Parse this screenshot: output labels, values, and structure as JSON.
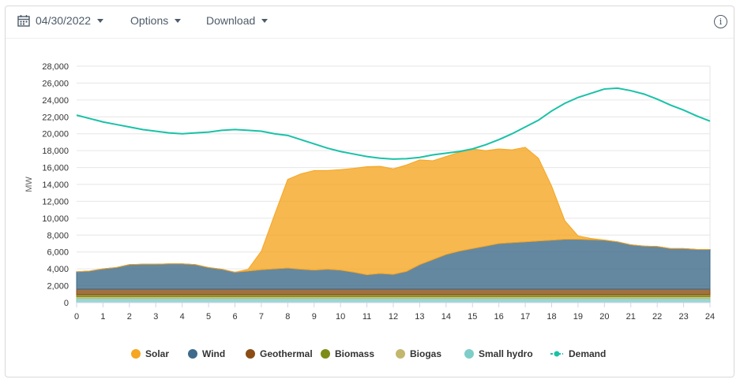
{
  "toolbar": {
    "date_value": "04/30/2022",
    "options_label": "Options",
    "download_label": "Download",
    "info_label": "i"
  },
  "chart_data": {
    "type": "area",
    "xlabel": "",
    "ylabel": "MW",
    "xlim": [
      0,
      24
    ],
    "ylim": [
      0,
      28000
    ],
    "x_ticks": [
      "0",
      "1",
      "2",
      "3",
      "4",
      "5",
      "6",
      "7",
      "8",
      "9",
      "10",
      "11",
      "12",
      "13",
      "14",
      "15",
      "16",
      "17",
      "18",
      "19",
      "20",
      "21",
      "22",
      "23",
      "24"
    ],
    "y_ticks": [
      "0",
      "2,000",
      "4,000",
      "6,000",
      "8,000",
      "10,000",
      "12,000",
      "14,000",
      "16,000",
      "18,000",
      "20,000",
      "22,000",
      "24,000",
      "26,000",
      "28,000"
    ],
    "grid": true,
    "legend_position": "bottom",
    "x": [
      0,
      0.5,
      1,
      1.5,
      2,
      2.5,
      3,
      3.5,
      4,
      4.5,
      5,
      5.5,
      6,
      6.5,
      7,
      7.5,
      8,
      8.5,
      9,
      9.5,
      10,
      10.5,
      11,
      11.5,
      12,
      12.5,
      13,
      13.5,
      14,
      14.5,
      15,
      15.5,
      16,
      16.5,
      17,
      17.5,
      18,
      18.5,
      19,
      19.5,
      20,
      20.5,
      21,
      21.5,
      22,
      22.5,
      23,
      23.5,
      24
    ],
    "series": [
      {
        "name": "Small hydro",
        "color": "#7fcdc8",
        "kind": "area",
        "values": [
          500,
          500,
          500,
          500,
          500,
          500,
          500,
          500,
          500,
          500,
          500,
          500,
          500,
          500,
          500,
          500,
          500,
          500,
          500,
          500,
          500,
          500,
          500,
          500,
          500,
          500,
          500,
          500,
          500,
          500,
          500,
          500,
          500,
          500,
          500,
          500,
          500,
          500,
          500,
          500,
          500,
          500,
          500,
          500,
          500,
          500,
          500,
          500,
          500
        ]
      },
      {
        "name": "Biogas",
        "color": "#c2b76e",
        "kind": "area",
        "values": [
          200,
          200,
          200,
          200,
          200,
          200,
          200,
          200,
          200,
          200,
          200,
          200,
          200,
          200,
          200,
          200,
          200,
          200,
          200,
          200,
          200,
          200,
          200,
          200,
          200,
          200,
          200,
          200,
          200,
          200,
          200,
          200,
          200,
          200,
          200,
          200,
          200,
          200,
          200,
          200,
          200,
          200,
          200,
          200,
          200,
          200,
          200,
          200,
          200
        ]
      },
      {
        "name": "Biomass",
        "color": "#7d8c16",
        "kind": "area",
        "values": [
          250,
          250,
          250,
          250,
          250,
          250,
          250,
          250,
          250,
          250,
          250,
          250,
          250,
          250,
          250,
          250,
          250,
          250,
          250,
          250,
          250,
          250,
          250,
          250,
          250,
          250,
          250,
          250,
          250,
          250,
          250,
          250,
          250,
          250,
          250,
          250,
          250,
          250,
          250,
          250,
          250,
          250,
          250,
          250,
          250,
          250,
          250,
          250,
          250
        ]
      },
      {
        "name": "Geothermal",
        "color": "#8b4d14",
        "kind": "area",
        "values": [
          650,
          650,
          650,
          650,
          650,
          650,
          650,
          650,
          650,
          650,
          650,
          650,
          650,
          650,
          650,
          650,
          650,
          650,
          650,
          650,
          650,
          650,
          650,
          650,
          650,
          650,
          650,
          650,
          650,
          650,
          650,
          650,
          650,
          650,
          650,
          650,
          650,
          650,
          650,
          650,
          650,
          650,
          650,
          650,
          650,
          650,
          650,
          650,
          650
        ]
      },
      {
        "name": "Wind",
        "color": "#3f6a8a",
        "kind": "area",
        "values": [
          2050,
          2150,
          2400,
          2550,
          2900,
          2950,
          2950,
          3000,
          3000,
          2900,
          2550,
          2350,
          2000,
          2150,
          2300,
          2400,
          2500,
          2350,
          2250,
          2350,
          2250,
          2000,
          1700,
          1850,
          1750,
          2100,
          2900,
          3500,
          4100,
          4500,
          4800,
          5100,
          5400,
          5500,
          5600,
          5700,
          5800,
          5900,
          5900,
          5850,
          5800,
          5600,
          5250,
          5100,
          5050,
          4800,
          4800,
          4700,
          4700
        ]
      },
      {
        "name": "Solar",
        "color": "#f5a623",
        "kind": "area",
        "values": [
          0,
          0,
          0,
          0,
          0,
          0,
          0,
          0,
          0,
          0,
          0,
          0,
          0,
          200,
          2200,
          6400,
          10500,
          11300,
          11800,
          11700,
          11900,
          12300,
          12800,
          12700,
          12500,
          12600,
          12400,
          11700,
          11600,
          11700,
          11800,
          11300,
          11200,
          11000,
          11200,
          9800,
          6400,
          2200,
          400,
          150,
          20,
          0,
          0,
          0,
          0,
          0,
          0,
          0,
          0
        ]
      },
      {
        "name": "Demand",
        "color": "#19c2a7",
        "kind": "line",
        "values": [
          22200,
          21800,
          21400,
          21100,
          20800,
          20500,
          20300,
          20100,
          20000,
          20100,
          20200,
          20400,
          20500,
          20400,
          20300,
          20000,
          19800,
          19300,
          18800,
          18300,
          17900,
          17600,
          17300,
          17100,
          17000,
          17050,
          17200,
          17500,
          17700,
          17900,
          18200,
          18700,
          19300,
          20000,
          20800,
          21600,
          22700,
          23600,
          24300,
          24800,
          25300,
          25400,
          25100,
          24700,
          24100,
          23400,
          22800,
          22100,
          21500
        ]
      }
    ],
    "legend": [
      "Solar",
      "Wind",
      "Geothermal",
      "Biomass",
      "Biogas",
      "Small hydro",
      "Demand"
    ]
  }
}
